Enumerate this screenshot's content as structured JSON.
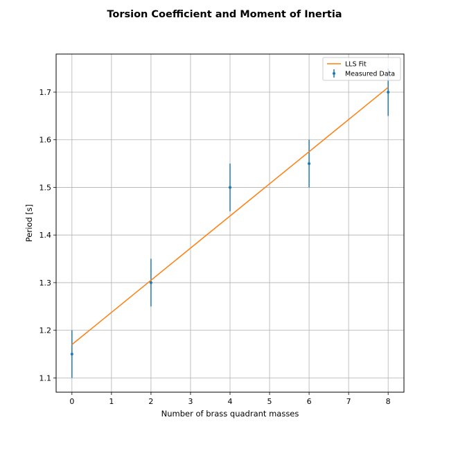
{
  "chart_data": {
    "type": "scatter",
    "title": "Torsion Coefficient and Moment of Inertia",
    "xlabel": "Number of brass quadrant masses",
    "ylabel": "Period [s]",
    "xlim": [
      -0.4,
      8.4
    ],
    "ylim": [
      1.07,
      1.78
    ],
    "xticks": [
      0,
      1,
      2,
      3,
      4,
      5,
      6,
      7,
      8
    ],
    "xtick_labels": [
      "0",
      "1",
      "2",
      "3",
      "4",
      "5",
      "6",
      "7",
      "8"
    ],
    "yticks": [
      1.1,
      1.2,
      1.3,
      1.4,
      1.5,
      1.6,
      1.7
    ],
    "ytick_labels": [
      "1.1",
      "1.2",
      "1.3",
      "1.4",
      "1.5",
      "1.6",
      "1.7"
    ],
    "grid": true,
    "legend_position": "top-right",
    "legend": [
      "LLS Fit",
      "Measured Data"
    ],
    "series": [
      {
        "name": "Measured Data",
        "kind": "errorbar",
        "color": "#1f77b4",
        "x": [
          0,
          2,
          4,
          6,
          8
        ],
        "y": [
          1.15,
          1.3,
          1.5,
          1.55,
          1.7
        ],
        "yerr": [
          0.05,
          0.05,
          0.05,
          0.05,
          0.05
        ]
      },
      {
        "name": "LLS Fit",
        "kind": "line",
        "color": "#ff7f0e",
        "x": [
          0,
          8
        ],
        "y": [
          1.17,
          1.71
        ]
      }
    ]
  }
}
